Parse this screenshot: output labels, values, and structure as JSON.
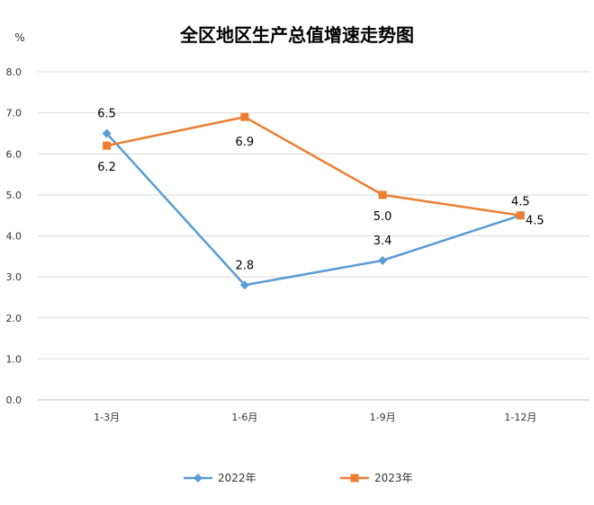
{
  "chart_data": {
    "type": "line",
    "title": "全区地区生产总值增速走势图",
    "ylabel": "%",
    "xlabel": "",
    "categories": [
      "1-3月",
      "1-6月",
      "1-9月",
      "1-12月"
    ],
    "ylim": [
      0,
      8
    ],
    "yticks": [
      "0.0",
      "1.0",
      "2.0",
      "3.0",
      "4.0",
      "5.0",
      "6.0",
      "7.0",
      "8.0"
    ],
    "grid": true,
    "legend": "bottom",
    "series": [
      {
        "name": "2022年",
        "values": [
          6.5,
          2.8,
          3.4,
          4.5
        ],
        "labels": [
          "6.5",
          "2.8",
          "3.4",
          "4.5"
        ],
        "color": "#5B9BD5",
        "marker": "diamond"
      },
      {
        "name": "2023年",
        "values": [
          6.2,
          6.9,
          5.0,
          4.5
        ],
        "labels": [
          "6.2",
          "6.9",
          "5.0",
          "4.5"
        ],
        "color": "#ED7D31",
        "marker": "square"
      }
    ]
  }
}
